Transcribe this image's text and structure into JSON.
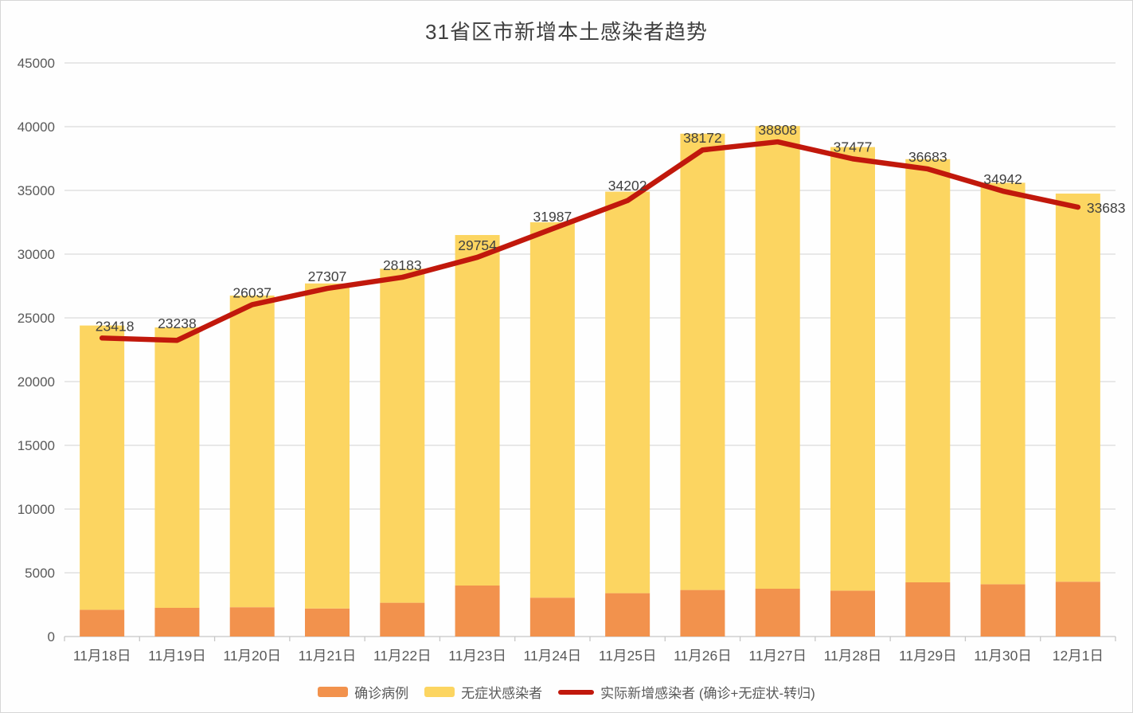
{
  "title": "31省区市新增本土感染者趋势",
  "colors": {
    "confirmed_bar": "#F2924D",
    "asymptomatic_bar": "#FCD561",
    "trend_line": "#C1180C",
    "gridline": "#dadada",
    "axis_line": "#c6c6c6",
    "axis_text": "#595959",
    "data_label_text": "#404040",
    "title_text": "#3f3f3f",
    "background": "#fefefe"
  },
  "chart_data": {
    "type": "bar",
    "subtype": "stacked-bars-with-line-overlay",
    "title": "31省区市新增本土感染者趋势",
    "categories": [
      "11月18日",
      "11月19日",
      "11月20日",
      "11月21日",
      "11月22日",
      "11月23日",
      "11月24日",
      "11月25日",
      "11月26日",
      "11月27日",
      "11月28日",
      "11月29日",
      "11月30日",
      "12月1日"
    ],
    "series": [
      {
        "name": "确诊病例",
        "render": "bar",
        "stacked": true,
        "color": "#F2924D",
        "values": [
          2100,
          2250,
          2300,
          2200,
          2650,
          4000,
          3050,
          3400,
          3650,
          3750,
          3600,
          4250,
          4100,
          4300
        ]
      },
      {
        "name": "无症状感染者",
        "render": "bar",
        "stacked": true,
        "color": "#FCD561",
        "values": [
          22300,
          22000,
          24450,
          25500,
          26200,
          27500,
          29450,
          31500,
          35800,
          36300,
          34800,
          33200,
          31500,
          30450
        ]
      },
      {
        "name": "实际新增感染者 (确诊+无症状-转归)",
        "render": "line",
        "color": "#C1180C",
        "values": [
          23418,
          23238,
          26037,
          27307,
          28183,
          29754,
          31987,
          34202,
          38172,
          38808,
          37477,
          36683,
          34942,
          33683
        ],
        "data_labels": [
          "23418",
          "23238",
          "26037",
          "27307",
          "28183",
          "29754",
          "31987",
          "34202",
          "38172",
          "38808",
          "37477",
          "36683",
          "34942",
          "33683"
        ]
      }
    ],
    "xlabel": "",
    "ylabel": "",
    "ylim": [
      0,
      45000
    ],
    "ytick_step": 5000,
    "ytick_labels": [
      "0",
      "5000",
      "10000",
      "15000",
      "20000",
      "25000",
      "30000",
      "35000",
      "40000",
      "45000"
    ],
    "grid": true,
    "legend_position": "bottom"
  }
}
